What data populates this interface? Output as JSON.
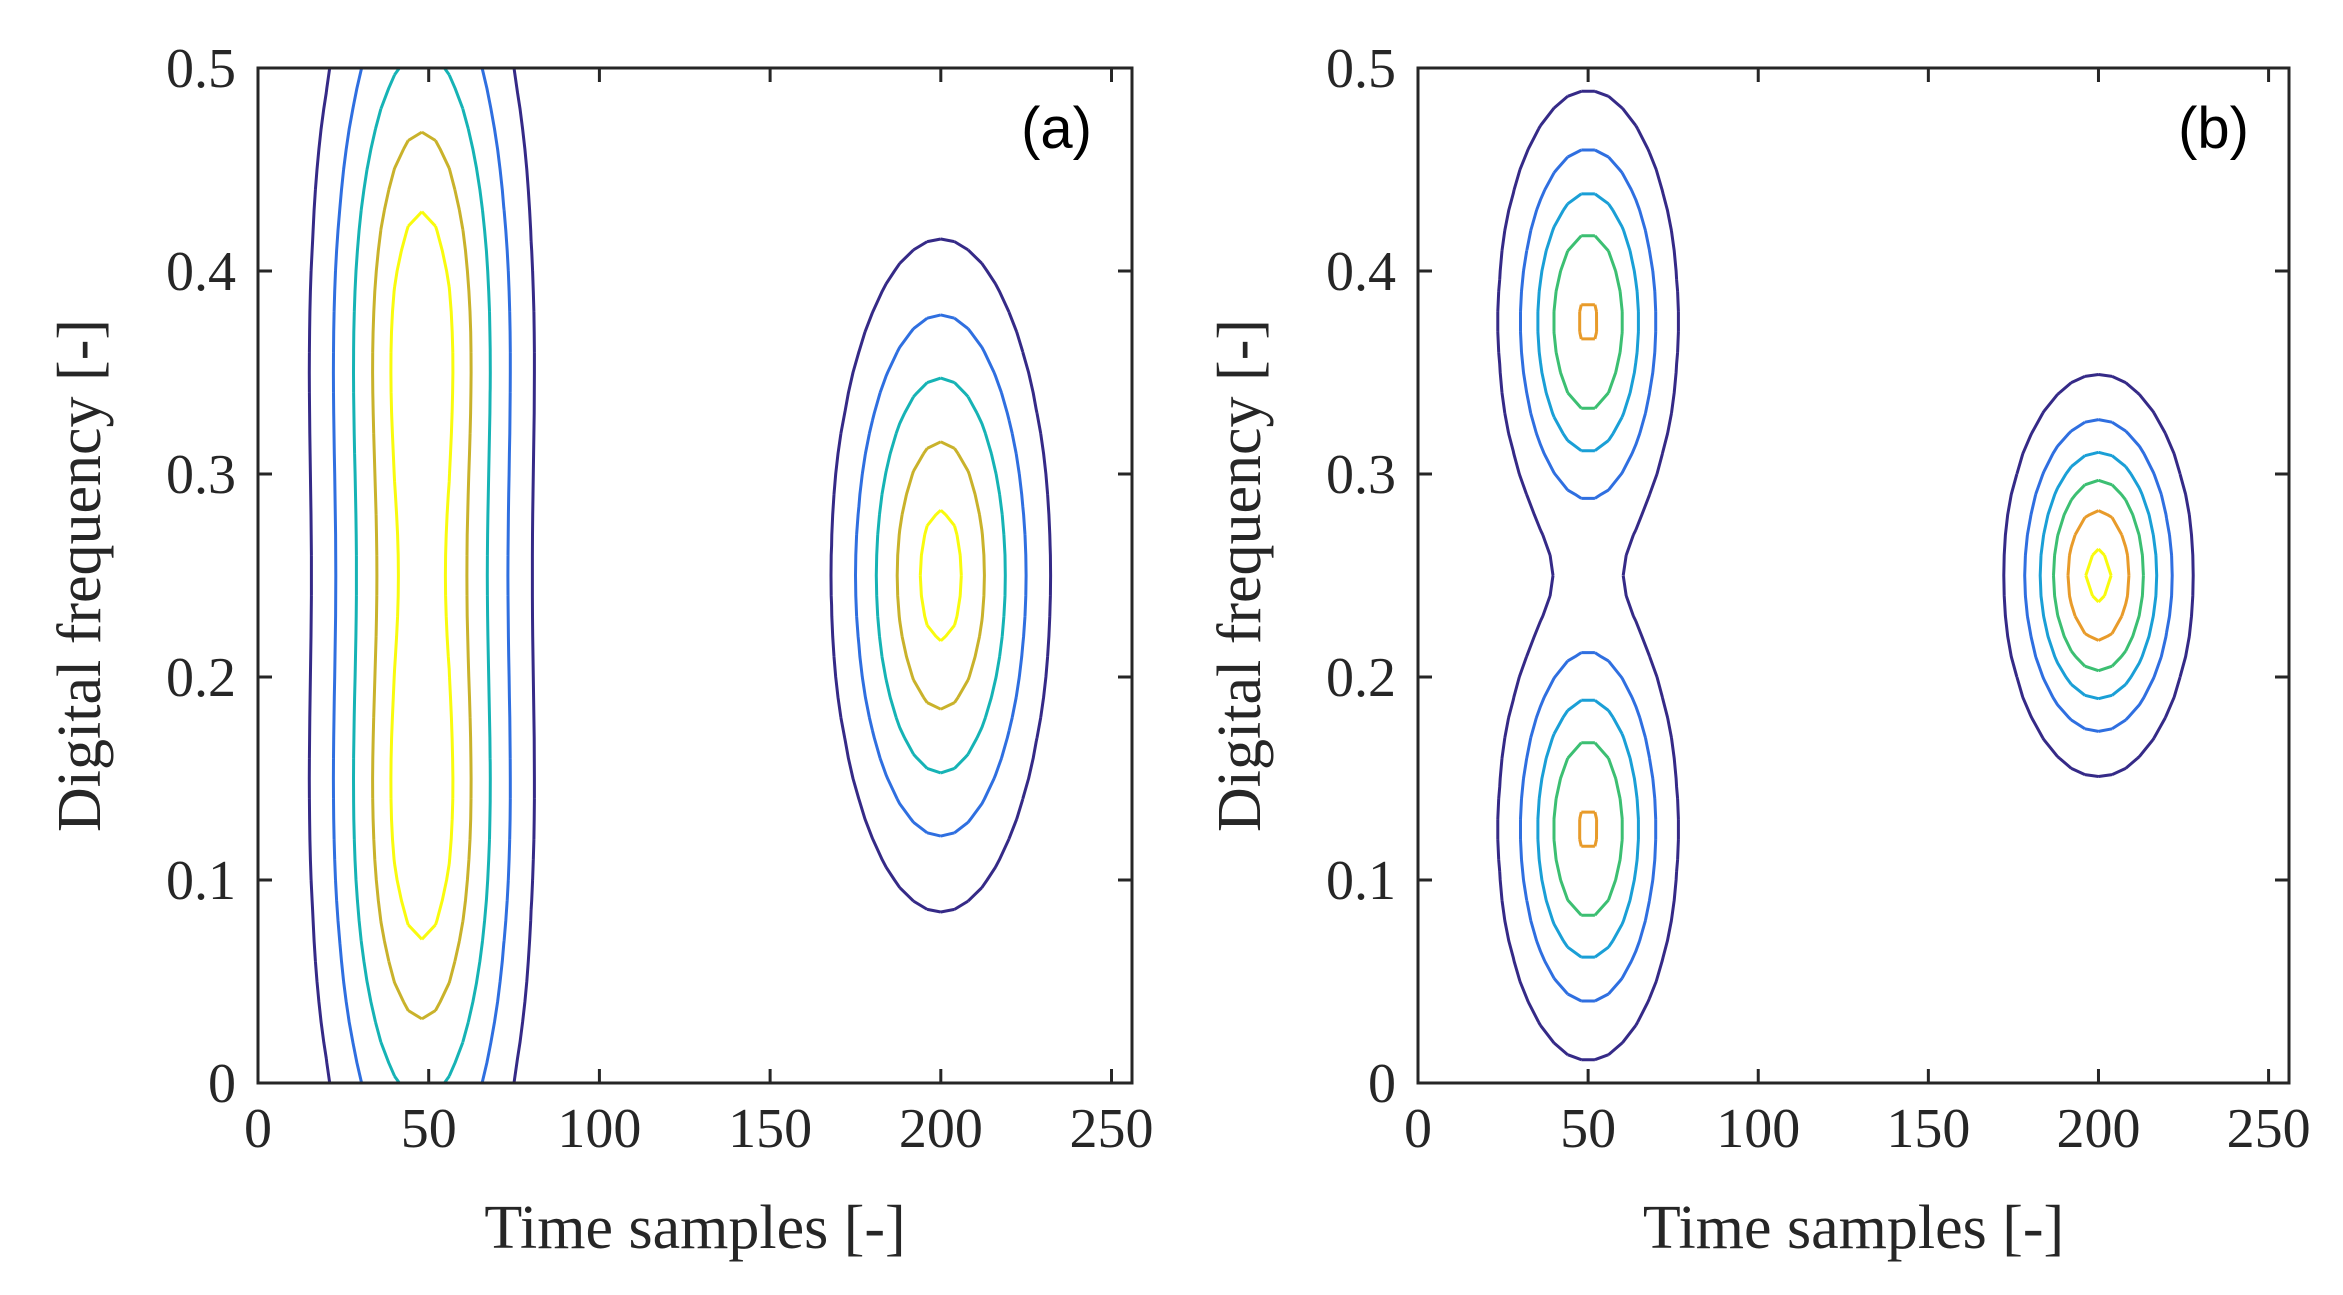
{
  "chart_data": [
    {
      "type": "contour",
      "panel_label": "(a)",
      "xlabel": "Time samples [-]",
      "ylabel": "Digital frequency [-]",
      "xlim": [
        0,
        256
      ],
      "ylim": [
        0,
        0.5
      ],
      "xticks": [
        0,
        50,
        100,
        150,
        200,
        250
      ],
      "xtick_labels": [
        "0",
        "50",
        "100",
        "150",
        "200",
        "250"
      ],
      "yticks": [
        0,
        0.1,
        0.2,
        0.3,
        0.4,
        0.5
      ],
      "ytick_labels": [
        "0",
        "0.1",
        "0.2",
        "0.3",
        "0.4",
        "0.5"
      ],
      "level_colors": [
        "#352a87",
        "#2f6fe0",
        "#16b3b5",
        "#c9b22b",
        "#f9fb0e"
      ],
      "components": [
        {
          "t": 48,
          "f": 0.38,
          "sigma_t": 16.5,
          "sigma_f": 0.112,
          "amp": 1.0
        },
        {
          "t": 48,
          "f": 0.12,
          "sigma_t": 16.5,
          "sigma_f": 0.112,
          "amp": 1.0
        },
        {
          "t": 200,
          "f": 0.25,
          "sigma_t": 16.5,
          "sigma_f": 0.085,
          "amp": 1.0
        }
      ],
      "levels": [
        0.15,
        0.32,
        0.52,
        0.74,
        0.93
      ]
    },
    {
      "type": "contour",
      "panel_label": "(b)",
      "xlabel": "Time samples [-]",
      "ylabel": "Digital frequency [-]",
      "xlim": [
        0,
        256
      ],
      "ylim": [
        0,
        0.5
      ],
      "xticks": [
        0,
        50,
        100,
        150,
        200,
        250
      ],
      "xtick_labels": [
        "0",
        "50",
        "100",
        "150",
        "200",
        "250"
      ],
      "yticks": [
        0,
        0.1,
        0.2,
        0.3,
        0.4,
        0.5
      ],
      "ytick_labels": [
        "0",
        "0.1",
        "0.2",
        "0.3",
        "0.4",
        "0.5"
      ],
      "level_colors": [
        "#352a87",
        "#2f6fe0",
        "#1a9fd6",
        "#3cbf72",
        "#e89b2a",
        "#f9fb0e"
      ],
      "components": [
        {
          "t": 50,
          "f": 0.375,
          "sigma_t": 13.5,
          "sigma_f": 0.058,
          "amp": 0.82
        },
        {
          "t": 50,
          "f": 0.125,
          "sigma_t": 13.5,
          "sigma_f": 0.058,
          "amp": 0.82
        },
        {
          "t": 200,
          "f": 0.25,
          "sigma_t": 13.5,
          "sigma_f": 0.048,
          "amp": 1.0
        }
      ],
      "levels": [
        0.12,
        0.28,
        0.45,
        0.62,
        0.8,
        0.96
      ]
    }
  ]
}
